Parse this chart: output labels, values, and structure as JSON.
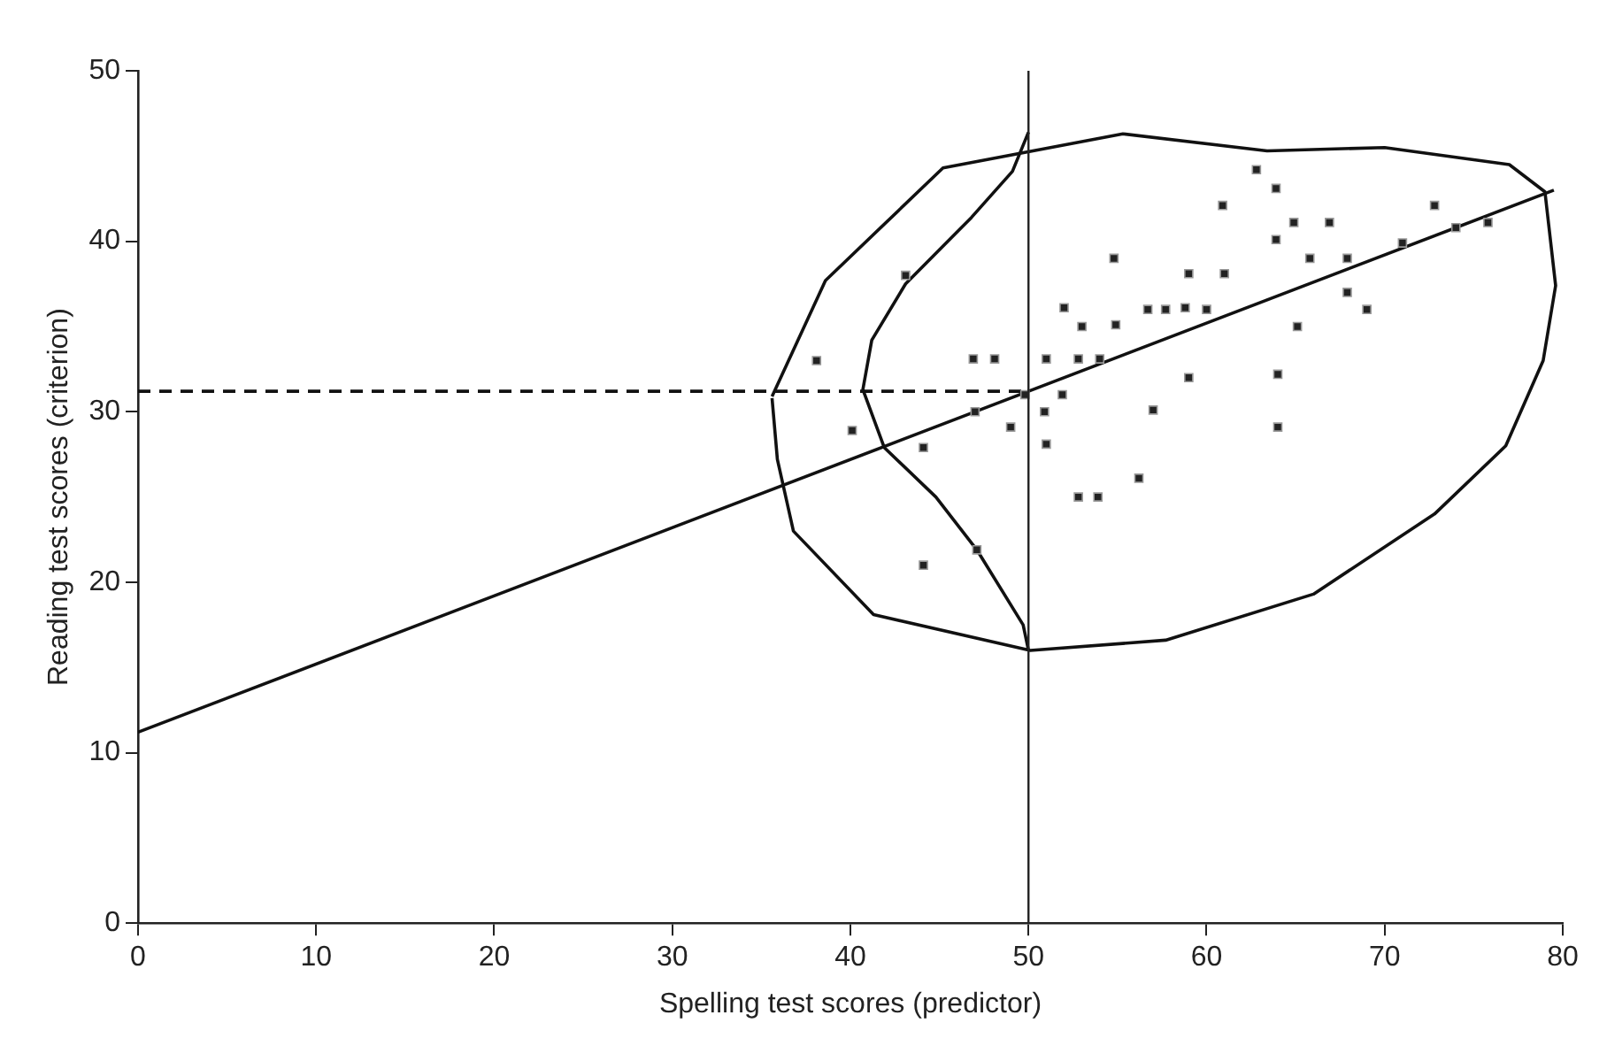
{
  "chart_data": {
    "type": "scatter",
    "xlabel": "Spelling test scores (predictor)",
    "ylabel": "Reading test scores (criterion)",
    "xlim": [
      0,
      80
    ],
    "xticks": [
      0,
      10,
      20,
      30,
      40,
      50,
      60,
      70,
      80
    ],
    "ylim": [
      0,
      50
    ],
    "yticks": [
      0,
      10,
      20,
      30,
      40,
      50
    ],
    "grid": false,
    "legend": false,
    "marker": "square",
    "ref_lines": [
      {
        "axis": "x",
        "value": 50,
        "color": "#222222"
      }
    ],
    "series": [
      {
        "type": "scatter",
        "color": "#222222",
        "x": [
          43.1,
          38.1,
          46.9,
          48.1,
          51.0,
          52.8,
          54.0,
          52.0,
          53.0,
          54.9,
          54.8,
          49.8,
          51.9,
          47.0,
          50.9,
          40.1,
          49.0,
          44.1,
          51.0,
          52.8,
          53.9,
          47.1,
          44.1,
          62.8,
          63.9,
          60.9,
          64.9,
          66.9,
          63.9,
          65.8,
          67.9,
          59.0,
          61.0,
          56.7,
          57.7,
          58.8,
          60.0,
          67.9,
          69.0,
          71.0,
          72.8,
          74.0,
          75.8,
          65.1,
          59.0,
          64.0,
          57.0,
          64.0,
          56.2
        ],
        "values": [
          38.0,
          33.0,
          33.1,
          33.1,
          33.1,
          33.1,
          33.1,
          36.1,
          35.0,
          35.1,
          39.0,
          31.0,
          31.0,
          30.0,
          30.0,
          28.9,
          29.1,
          27.9,
          28.1,
          25.0,
          25.0,
          21.9,
          21.0,
          44.2,
          43.1,
          42.1,
          41.1,
          41.1,
          40.1,
          39.0,
          39.0,
          38.1,
          38.1,
          36.0,
          36.0,
          36.1,
          36.0,
          37.0,
          36.0,
          39.9,
          42.1,
          40.8,
          41.1,
          35.0,
          32.0,
          32.2,
          30.1,
          29.1,
          26.1
        ]
      },
      {
        "type": "line",
        "marker": "none",
        "color": "#111111",
        "line_style": "solid",
        "x": [
          0,
          79.5
        ],
        "values": [
          11.2,
          43.0
        ]
      },
      {
        "type": "line",
        "marker": "none",
        "color": "#111111",
        "line_style": "dashed",
        "x": [
          0,
          50
        ],
        "values": [
          31.2,
          31.2
        ]
      },
      {
        "type": "line",
        "marker": "none",
        "color": "#111111",
        "line_style": "solid",
        "x": [
          50,
          49.1,
          46.8,
          43.1,
          41.2,
          40.7,
          41.9,
          44.8,
          47.1,
          49.7,
          50
        ],
        "values": [
          46.4,
          44.1,
          41.4,
          37.5,
          34.2,
          31.3,
          27.9,
          25.0,
          21.9,
          17.5,
          16.0
        ]
      },
      {
        "type": "line",
        "marker": "none",
        "color": "#111111",
        "line_style": "solid",
        "x": [
          35.6,
          38.6,
          45.2,
          55.3,
          63.4,
          70.0,
          77.0,
          79.0,
          79.6,
          78.9,
          76.8,
          72.8,
          66.0,
          57.7,
          50.1,
          41.3,
          36.8,
          35.9,
          35.6
        ],
        "values": [
          30.9,
          37.7,
          44.3,
          46.3,
          45.3,
          45.5,
          44.5,
          42.9,
          37.4,
          33.0,
          28.0,
          24.0,
          19.3,
          16.6,
          16.0,
          18.1,
          23.0,
          27.2,
          30.8
        ]
      }
    ]
  }
}
